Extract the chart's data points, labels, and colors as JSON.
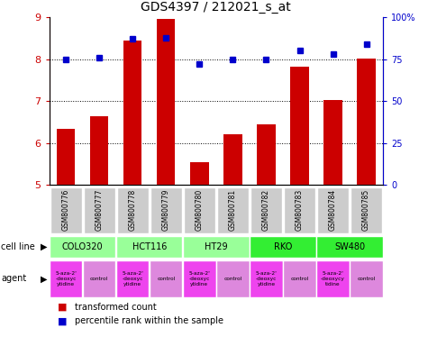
{
  "title": "GDS4397 / 212021_s_at",
  "samples": [
    "GSM800776",
    "GSM800777",
    "GSM800778",
    "GSM800779",
    "GSM800780",
    "GSM800781",
    "GSM800782",
    "GSM800783",
    "GSM800784",
    "GSM800785"
  ],
  "transformed_count": [
    6.35,
    6.65,
    8.45,
    8.97,
    5.55,
    6.22,
    6.45,
    7.82,
    7.02,
    8.02
  ],
  "percentile_rank": [
    75,
    76,
    87,
    88,
    72,
    75,
    75,
    80,
    78,
    84
  ],
  "ylim_left": [
    5,
    9
  ],
  "ylim_right": [
    0,
    100
  ],
  "yticks_left": [
    5,
    6,
    7,
    8,
    9
  ],
  "yticks_right": [
    0,
    25,
    50,
    75,
    100
  ],
  "ytick_right_labels": [
    "0",
    "25",
    "50",
    "75",
    "100%"
  ],
  "bar_color": "#cc0000",
  "dot_color": "#0000cc",
  "cell_lines": [
    {
      "name": "COLO320",
      "start": 0,
      "end": 2,
      "color": "#99ff99"
    },
    {
      "name": "HCT116",
      "start": 2,
      "end": 4,
      "color": "#99ff99"
    },
    {
      "name": "HT29",
      "start": 4,
      "end": 6,
      "color": "#99ff99"
    },
    {
      "name": "RKO",
      "start": 6,
      "end": 8,
      "color": "#33ee33"
    },
    {
      "name": "SW480",
      "start": 8,
      "end": 10,
      "color": "#33ee33"
    }
  ],
  "agents": [
    {
      "name": "5-aza-2'\n-deoxyc\nytidine",
      "color": "#ee44ee"
    },
    {
      "name": "control",
      "color": "#dd88dd"
    },
    {
      "name": "5-aza-2'\n-deoxyc\nytidine",
      "color": "#ee44ee"
    },
    {
      "name": "control",
      "color": "#dd88dd"
    },
    {
      "name": "5-aza-2'\n-deoxyc\nytidine",
      "color": "#ee44ee"
    },
    {
      "name": "control",
      "color": "#dd88dd"
    },
    {
      "name": "5-aza-2'\n-deoxyc\nytidine",
      "color": "#ee44ee"
    },
    {
      "name": "control",
      "color": "#dd88dd"
    },
    {
      "name": "5-aza-2'\n-deoxycy\ntidine",
      "color": "#ee44ee"
    },
    {
      "name": "control",
      "color": "#dd88dd"
    }
  ],
  "sample_bg_color": "#cccccc",
  "grid_yticks": [
    6,
    7,
    8
  ],
  "legend_red": "transformed count",
  "legend_blue": "percentile rank within the sample",
  "right_axis_color": "#0000cc",
  "left_axis_color": "#cc0000"
}
